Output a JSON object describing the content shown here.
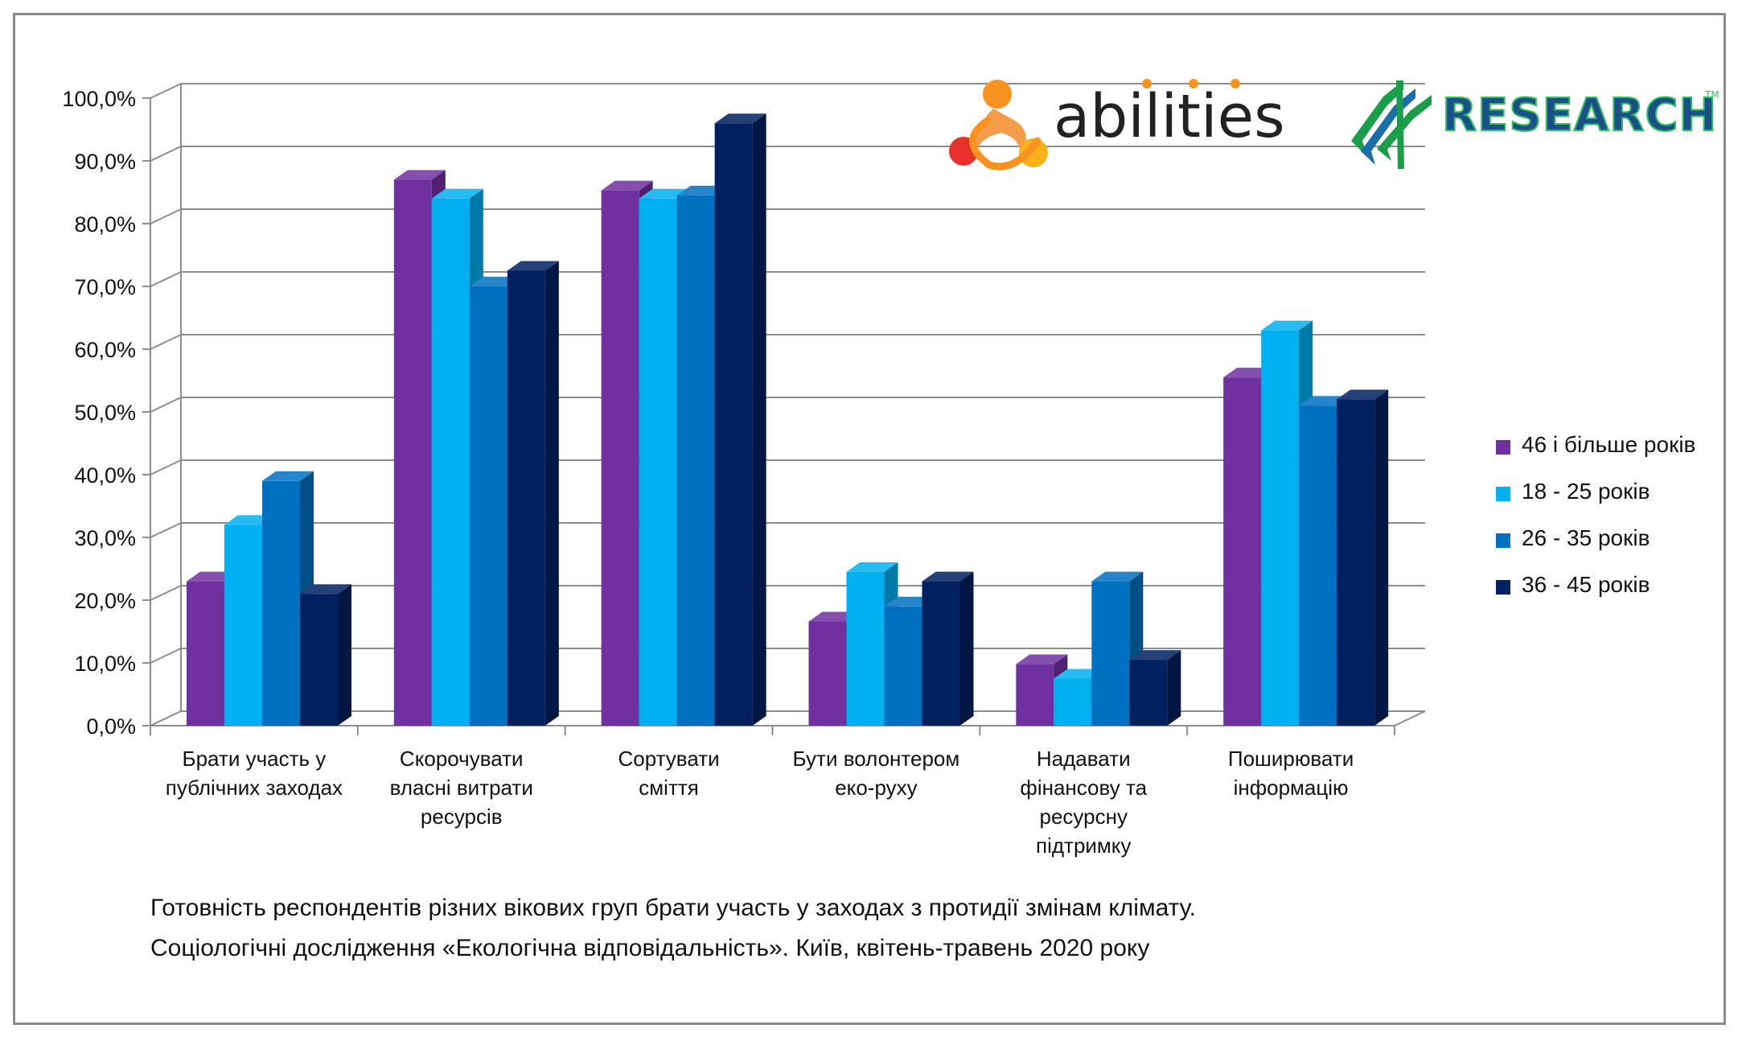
{
  "chart_data": {
    "type": "bar",
    "categories": [
      [
        "Брати участь у",
        "публічних заходах"
      ],
      [
        "Скорочувати",
        "власні витрати",
        "ресурсів"
      ],
      [
        "Сортувати",
        "сміття"
      ],
      [
        "Бути волонтером",
        "еко-руху"
      ],
      [
        "Надавати",
        "фінансову та",
        "ресурсну",
        "підтримку"
      ],
      [
        "Поширювати",
        "інформацію"
      ]
    ],
    "series": [
      {
        "name": "46 і більше років",
        "color": "#7030a0",
        "values": [
          23.0,
          87.0,
          85.3,
          16.6,
          9.8,
          55.5
        ]
      },
      {
        "name": "18 - 25 років",
        "color": "#00b0f0",
        "values": [
          32.0,
          84.0,
          84.0,
          24.5,
          7.5,
          63.0
        ]
      },
      {
        "name": "26 - 35 років",
        "color": "#0070c0",
        "values": [
          39.0,
          70.0,
          84.5,
          19.0,
          23.0,
          51.0
        ]
      },
      {
        "name": "36 - 45 років",
        "color": "#002060",
        "values": [
          21.0,
          72.5,
          96.0,
          23.0,
          10.5,
          52.0
        ]
      }
    ],
    "y_ticks": [
      "0,0%",
      "10,0%",
      "20,0%",
      "30,0%",
      "40,0%",
      "50,0%",
      "60,0%",
      "70,0%",
      "80,0%",
      "90,0%",
      "100,0%"
    ],
    "ylim": [
      0,
      100
    ],
    "grid": true,
    "legend_position": "right",
    "caption": [
      "Готовність респондентів різних вікових груп брати участь у заходах з протидії змінам клімату.",
      "Соціологічні дослідження «Екологічна відповідальність». Київ, квітень-травень 2020 року"
    ]
  },
  "logos": {
    "abilities": "abilities",
    "research": "RESEARCH",
    "trademark": "TM"
  }
}
